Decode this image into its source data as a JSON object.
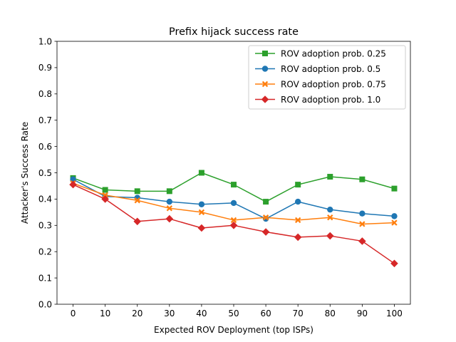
{
  "chart_data": {
    "type": "line",
    "title": "Prefix hijack success rate",
    "xlabel": "Expected ROV Deployment (top ISPs)",
    "ylabel": "Attacker's Success Rate",
    "x": [
      0,
      10,
      20,
      30,
      40,
      50,
      60,
      70,
      80,
      90,
      100
    ],
    "x_ticks": [
      "0",
      "10",
      "20",
      "30",
      "40",
      "50",
      "60",
      "70",
      "80",
      "90",
      "100"
    ],
    "y_ticks": [
      "0.0",
      "0.1",
      "0.2",
      "0.3",
      "0.4",
      "0.5",
      "0.6",
      "0.7",
      "0.8",
      "0.9",
      "1.0"
    ],
    "xlim": [
      -5,
      105
    ],
    "ylim": [
      0,
      1
    ],
    "grid": false,
    "legend_position": "top-right",
    "series": [
      {
        "name": "ROV adoption prob. 0.25",
        "color": "#2ca02c",
        "marker": "square",
        "values": [
          0.48,
          0.435,
          0.43,
          0.43,
          0.5,
          0.455,
          0.39,
          0.455,
          0.485,
          0.475,
          0.44
        ]
      },
      {
        "name": "ROV adoption prob. 0.5",
        "color": "#1f77b4",
        "marker": "circle",
        "values": [
          0.475,
          0.41,
          0.405,
          0.39,
          0.38,
          0.385,
          0.325,
          0.39,
          0.36,
          0.345,
          0.335
        ]
      },
      {
        "name": "ROV adoption prob. 0.75",
        "color": "#ff7f0e",
        "marker": "x-filled",
        "values": [
          0.46,
          0.415,
          0.395,
          0.365,
          0.35,
          0.32,
          0.33,
          0.32,
          0.33,
          0.305,
          0.31
        ]
      },
      {
        "name": "ROV adoption prob. 1.0",
        "color": "#d62728",
        "marker": "diamond",
        "values": [
          0.455,
          0.4,
          0.315,
          0.325,
          0.29,
          0.3,
          0.275,
          0.255,
          0.26,
          0.24,
          0.155
        ]
      }
    ]
  }
}
